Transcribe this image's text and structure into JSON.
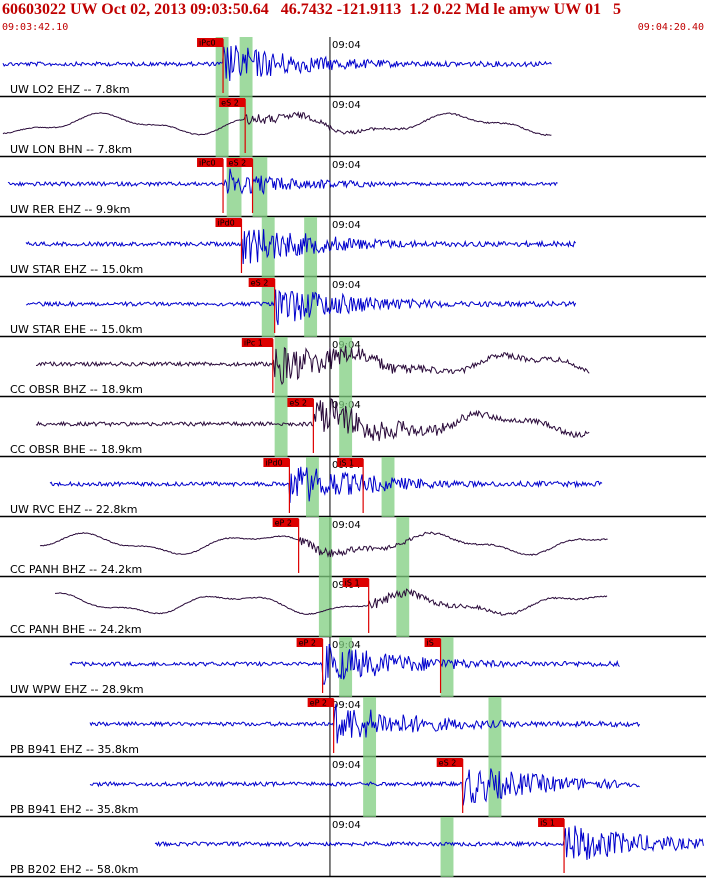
{
  "header": {
    "title": "60603022 UW Oct 02, 2013 09:03:50.64   46.7432 -121.9113  1.2 0.22 Md le amyw UW 01   5",
    "start_time": "09:03:42.10",
    "end_time": "09:04:20.40"
  },
  "colors": {
    "header_text": "#c00000",
    "trace_blue": "#0000cc",
    "trace_purple": "#2a0a3a",
    "pick": "#dd0000",
    "window_green": "#7fce7f"
  },
  "chart_data": {
    "type": "line",
    "title": "60603022 UW Oct 02, 2013 09:03:50.64   46.7432 -121.9113  1.2 0.22 Md le amyw UW 01   5",
    "x_start": "09:03:42.10",
    "x_end": "09:04:20.40",
    "tick_label": "09:04",
    "grid": false,
    "traces": [
      {
        "label": "UW LO2 EHZ -- 7.8km",
        "color": "blue",
        "picks": [
          {
            "text": "iPc0",
            "time": "09:03:54.2"
          }
        ],
        "green_windows": [
          {
            "from": "09:03:53.8",
            "to": "09:03:54.5"
          },
          {
            "from": "09:03:55.1",
            "to": "09:03:55.8"
          }
        ]
      },
      {
        "label": "UW LON BHN -- 7.8km",
        "color": "purple",
        "picks": [
          {
            "text": "eS 2",
            "time": "09:03:55.4"
          }
        ],
        "green_windows": [
          {
            "from": "09:03:53.8",
            "to": "09:03:54.5"
          },
          {
            "from": "09:03:55.1",
            "to": "09:03:55.8"
          }
        ]
      },
      {
        "label": "UW RER EHZ -- 9.9km",
        "color": "blue",
        "picks": [
          {
            "text": "iPc0",
            "time": "09:03:54.2"
          },
          {
            "text": "eS 2",
            "time": "09:03:55.8"
          }
        ],
        "green_windows": [
          {
            "from": "09:03:54.4",
            "to": "09:03:55.2"
          },
          {
            "from": "09:03:55.8",
            "to": "09:03:56.6"
          }
        ]
      },
      {
        "label": "UW STAR EHZ -- 15.0km",
        "color": "blue",
        "picks": [
          {
            "text": "iPd0",
            "time": "09:03:55.2"
          }
        ],
        "green_windows": [
          {
            "from": "09:03:56.3",
            "to": "09:03:57.0"
          },
          {
            "from": "09:03:58.6",
            "to": "09:03:59.3"
          }
        ]
      },
      {
        "label": "UW STAR EHE -- 15.0km",
        "color": "blue",
        "picks": [
          {
            "text": "eS 2",
            "time": "09:03:57.0"
          }
        ],
        "green_windows": [
          {
            "from": "09:03:56.3",
            "to": "09:03:57.0"
          },
          {
            "from": "09:03:58.6",
            "to": "09:03:59.3"
          }
        ]
      },
      {
        "label": "CC OBSR BHZ -- 18.9km",
        "color": "purple",
        "picks": [
          {
            "text": "iPc 1",
            "time": "09:03:56.9"
          }
        ],
        "green_windows": [
          {
            "from": "09:03:57.0",
            "to": "09:03:57.7"
          },
          {
            "from": "09:04:00.5",
            "to": "09:04:01.2"
          }
        ]
      },
      {
        "label": "CC OBSR BHE -- 18.9km",
        "color": "purple",
        "picks": [
          {
            "text": "eS 2",
            "time": "09:03:59.1"
          }
        ],
        "green_windows": [
          {
            "from": "09:03:57.0",
            "to": "09:03:57.7"
          },
          {
            "from": "09:04:00.5",
            "to": "09:04:01.2"
          }
        ]
      },
      {
        "label": "UW RVC EHZ -- 22.8km",
        "color": "blue",
        "picks": [
          {
            "text": "iPd0",
            "time": "09:03:57.8"
          },
          {
            "text": "iS 1",
            "time": "09:04:01.8"
          }
        ],
        "green_windows": [
          {
            "from": "09:03:58.7",
            "to": "09:03:59.4"
          },
          {
            "from": "09:04:02.8",
            "to": "09:04:03.5"
          }
        ]
      },
      {
        "label": "CC PANH BHZ -- 24.2km",
        "color": "purple",
        "picks": [
          {
            "text": "eP 2",
            "time": "09:03:58.3"
          }
        ],
        "green_windows": [
          {
            "from": "09:03:59.4",
            "to": "09:04:00.1"
          },
          {
            "from": "09:04:03.6",
            "to": "09:04:04.3"
          }
        ]
      },
      {
        "label": "CC PANH BHE -- 24.2km",
        "color": "purple",
        "picks": [
          {
            "text": "iS 1",
            "time": "09:04:02.1"
          }
        ],
        "green_windows": [
          {
            "from": "09:03:59.4",
            "to": "09:04:00.1"
          },
          {
            "from": "09:04:03.6",
            "to": "09:04:04.3"
          }
        ]
      },
      {
        "label": "UW WPW EHZ -- 28.9km",
        "color": "blue",
        "picks": [
          {
            "text": "eP 2",
            "time": "09:03:59.6"
          },
          {
            "text": "iS",
            "time": "09:04:06.0"
          }
        ],
        "green_windows": [
          {
            "from": "09:04:00.5",
            "to": "09:04:01.2"
          },
          {
            "from": "09:04:06.0",
            "to": "09:04:06.7"
          }
        ]
      },
      {
        "label": "PB B941 EHZ -- 35.8km",
        "color": "blue",
        "picks": [
          {
            "text": "eP 2",
            "time": "09:04:00.2"
          }
        ],
        "green_windows": [
          {
            "from": "09:04:01.8",
            "to": "09:04:02.5"
          },
          {
            "from": "09:04:08.6",
            "to": "09:04:09.3"
          }
        ]
      },
      {
        "label": "PB B941 EH2 -- 35.8km",
        "color": "blue",
        "picks": [
          {
            "text": "eS 2",
            "time": "09:04:07.2"
          }
        ],
        "green_windows": [
          {
            "from": "09:04:01.8",
            "to": "09:04:02.5"
          },
          {
            "from": "09:04:08.6",
            "to": "09:04:09.3"
          }
        ]
      },
      {
        "label": "PB B202 EH2 -- 58.0km",
        "color": "blue",
        "picks": [
          {
            "text": "iS 1",
            "time": "09:04:12.7"
          }
        ],
        "green_windows": [
          {
            "from": "09:04:06.0",
            "to": "09:04:06.7"
          }
        ]
      }
    ]
  }
}
